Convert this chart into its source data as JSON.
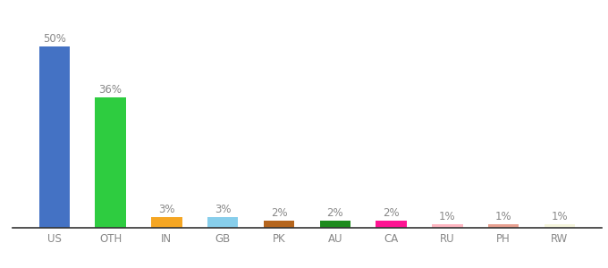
{
  "categories": [
    "US",
    "OTH",
    "IN",
    "GB",
    "PK",
    "AU",
    "CA",
    "RU",
    "PH",
    "RW"
  ],
  "values": [
    50,
    36,
    3,
    3,
    2,
    2,
    2,
    1,
    1,
    1
  ],
  "bar_colors": [
    "#4472c4",
    "#2ecc40",
    "#f5a623",
    "#87ceeb",
    "#b5651d",
    "#1e8b1e",
    "#ff1493",
    "#ffb6c1",
    "#e8a090",
    "#f5f5dc"
  ],
  "label_color": "#888888",
  "tick_color": "#888888",
  "ylim": [
    0,
    57
  ],
  "bar_width": 0.55,
  "label_fontsize": 8.5,
  "tick_fontsize": 8.5,
  "background_color": "#ffffff"
}
